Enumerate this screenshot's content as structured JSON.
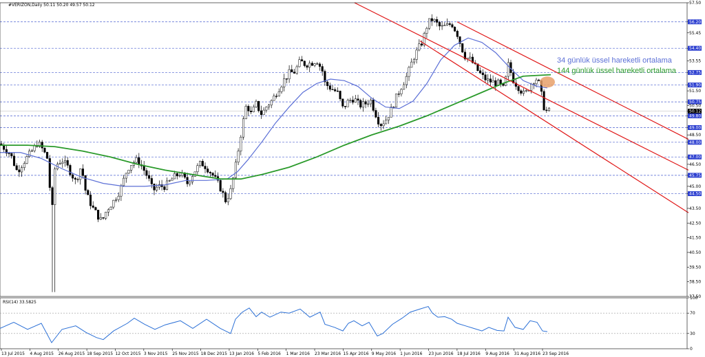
{
  "chart_data": {
    "type": "candlestick",
    "symbol_header": "#VERIZON,Daily  50.11 50.20 49.57 50.12",
    "price_axis": {
      "min": 37.5,
      "max": 57.5,
      "ticks": [
        "57.50",
        "56.20",
        "55.45",
        "54.40",
        "53.55",
        "52.75",
        "51.90",
        "51.50",
        "50.75",
        "50.50",
        "50.12",
        "49.80",
        "49.00",
        "48.50",
        "48.00",
        "47.00",
        "46.50",
        "45.75",
        "45.00",
        "44.50",
        "43.50",
        "42.50",
        "41.50",
        "40.50",
        "39.50",
        "38.50",
        "37.50"
      ],
      "highlighted": [
        "56.20",
        "54.40",
        "52.75",
        "51.90",
        "50.75",
        "50.12",
        "49.80",
        "49.00",
        "48.00",
        "47.00",
        "45.75",
        "44.50"
      ],
      "current_price": "50.12"
    },
    "date_labels": [
      "13 Jul 2015",
      "4 Aug 2015",
      "26 Aug 2015",
      "18 Sep 2015",
      "12 Oct 2015",
      "3 Nov 2015",
      "25 Nov 2015",
      "18 Dec 2015",
      "13 Jan 2016",
      "5 Feb 2016",
      "1 Mar 2016",
      "23 Mar 2016",
      "15 Apr 2016",
      "9 May 2016",
      "1 Jun 2016",
      "23 Jun 2016",
      "18 Jul 2016",
      "9 Aug 2016",
      "31 Aug 2016",
      "23 Sep 2016"
    ],
    "horizontal_levels": [
      56.2,
      54.4,
      52.75,
      51.9,
      50.75,
      49.8,
      49.0,
      48.0,
      47.0,
      45.75,
      44.5
    ],
    "price_path": [
      [
        0,
        47.9
      ],
      [
        15,
        47.2
      ],
      [
        25,
        46.0
      ],
      [
        35,
        46.7
      ],
      [
        45,
        47.3
      ],
      [
        55,
        48.0
      ],
      [
        62,
        47.5
      ],
      [
        70,
        46.8
      ],
      [
        75,
        42.8
      ],
      [
        80,
        46.4
      ],
      [
        90,
        46.8
      ],
      [
        100,
        46.2
      ],
      [
        110,
        45.3
      ],
      [
        118,
        46.4
      ],
      [
        125,
        44.5
      ],
      [
        135,
        43.5
      ],
      [
        142,
        43.0
      ],
      [
        148,
        42.6
      ],
      [
        155,
        43.4
      ],
      [
        165,
        44.0
      ],
      [
        175,
        44.8
      ],
      [
        185,
        46.2
      ],
      [
        192,
        46.6
      ],
      [
        200,
        46.8
      ],
      [
        208,
        46.2
      ],
      [
        215,
        45.6
      ],
      [
        222,
        44.7
      ],
      [
        230,
        45.0
      ],
      [
        240,
        45.0
      ],
      [
        252,
        45.6
      ],
      [
        262,
        45.9
      ],
      [
        272,
        45.2
      ],
      [
        282,
        46.0
      ],
      [
        292,
        46.6
      ],
      [
        300,
        46.3
      ],
      [
        310,
        45.7
      ],
      [
        320,
        44.9
      ],
      [
        328,
        44.0
      ],
      [
        335,
        44.7
      ],
      [
        342,
        46.3
      ],
      [
        350,
        48.6
      ],
      [
        358,
        50.6
      ],
      [
        365,
        49.9
      ],
      [
        372,
        50.6
      ],
      [
        380,
        49.9
      ],
      [
        388,
        50.5
      ],
      [
        396,
        50.9
      ],
      [
        404,
        51.6
      ],
      [
        412,
        52.2
      ],
      [
        420,
        52.7
      ],
      [
        428,
        52.8
      ],
      [
        436,
        53.5
      ],
      [
        444,
        53.3
      ],
      [
        452,
        53.4
      ],
      [
        460,
        53.6
      ],
      [
        468,
        52.9
      ],
      [
        472,
        52.0
      ],
      [
        480,
        51.7
      ],
      [
        490,
        51.4
      ],
      [
        498,
        50.3
      ],
      [
        506,
        50.8
      ],
      [
        514,
        51.0
      ],
      [
        522,
        50.5
      ],
      [
        530,
        50.6
      ],
      [
        538,
        50.9
      ],
      [
        546,
        49.9
      ],
      [
        552,
        49.2
      ],
      [
        560,
        49.5
      ],
      [
        568,
        50.2
      ],
      [
        576,
        51.1
      ],
      [
        584,
        51.9
      ],
      [
        592,
        52.6
      ],
      [
        600,
        53.7
      ],
      [
        608,
        54.4
      ],
      [
        614,
        54.9
      ],
      [
        620,
        55.9
      ],
      [
        626,
        56.4
      ],
      [
        632,
        56.2
      ],
      [
        640,
        55.8
      ],
      [
        648,
        55.9
      ],
      [
        656,
        56.1
      ],
      [
        664,
        55.4
      ],
      [
        670,
        54.5
      ],
      [
        676,
        53.8
      ],
      [
        684,
        53.6
      ],
      [
        692,
        53.0
      ],
      [
        700,
        52.5
      ],
      [
        708,
        52.2
      ],
      [
        716,
        52.1
      ],
      [
        724,
        52.0
      ],
      [
        732,
        51.6
      ],
      [
        738,
        53.3
      ],
      [
        746,
        52.2
      ],
      [
        754,
        51.7
      ],
      [
        762,
        51.2
      ],
      [
        770,
        51.9
      ],
      [
        778,
        52.4
      ],
      [
        784,
        51.9
      ],
      [
        789,
        50.5
      ],
      [
        794,
        50.1
      ],
      [
        798,
        50.12
      ]
    ],
    "series": [
      {
        "name": "34 günlük üssel hareketli ortalama",
        "color": "#5b6fd6",
        "values": [
          [
            0,
            47.3
          ],
          [
            30,
            47.3
          ],
          [
            60,
            46.9
          ],
          [
            90,
            46.2
          ],
          [
            120,
            45.6
          ],
          [
            150,
            45.2
          ],
          [
            180,
            45.0
          ],
          [
            210,
            45.0
          ],
          [
            240,
            45.1
          ],
          [
            270,
            45.4
          ],
          [
            300,
            45.4
          ],
          [
            330,
            45.5
          ],
          [
            345,
            46.0
          ],
          [
            360,
            46.8
          ],
          [
            380,
            48.0
          ],
          [
            400,
            49.3
          ],
          [
            420,
            50.4
          ],
          [
            440,
            51.4
          ],
          [
            460,
            52.0
          ],
          [
            480,
            52.3
          ],
          [
            500,
            52.2
          ],
          [
            520,
            51.8
          ],
          [
            540,
            51.0
          ],
          [
            560,
            50.4
          ],
          [
            580,
            50.3
          ],
          [
            600,
            50.8
          ],
          [
            620,
            52.0
          ],
          [
            640,
            53.6
          ],
          [
            660,
            54.6
          ],
          [
            680,
            55.1
          ],
          [
            700,
            54.8
          ],
          [
            720,
            54.1
          ],
          [
            740,
            53.1
          ],
          [
            760,
            52.2
          ],
          [
            780,
            51.8
          ],
          [
            795,
            51.7
          ]
        ]
      },
      {
        "name": "144 günlük üssel hareketli ortalama",
        "color": "#2a9a2a",
        "values": [
          [
            0,
            47.8
          ],
          [
            40,
            47.8
          ],
          [
            80,
            47.7
          ],
          [
            120,
            47.4
          ],
          [
            160,
            47.0
          ],
          [
            200,
            46.5
          ],
          [
            240,
            46.1
          ],
          [
            280,
            45.8
          ],
          [
            320,
            45.5
          ],
          [
            350,
            45.5
          ],
          [
            380,
            45.8
          ],
          [
            420,
            46.3
          ],
          [
            460,
            47.0
          ],
          [
            500,
            47.8
          ],
          [
            540,
            48.5
          ],
          [
            580,
            49.1
          ],
          [
            620,
            49.8
          ],
          [
            660,
            50.6
          ],
          [
            700,
            51.4
          ],
          [
            730,
            52.0
          ],
          [
            760,
            52.5
          ],
          [
            800,
            52.6
          ]
        ]
      }
    ],
    "channel": {
      "upper": [
        [
          515,
          57.5
        ],
        [
          1000,
          46.1
        ]
      ],
      "middle": [
        [
          664,
          56.2
        ],
        [
          1000,
          48.2
        ]
      ],
      "lower": [
        [
          610,
          54.9
        ],
        [
          1000,
          43.2
        ]
      ]
    },
    "highlight_point": [
      795,
      52.1
    ],
    "annotations": [
      {
        "text": "34 günlük üssel hareketli ortalama",
        "color": "#5b6fd6"
      },
      {
        "text": "144 günlük üssel hareketli ortalama",
        "color": "#2a9a2a"
      }
    ],
    "rsi": {
      "label": "RSI(14) 33.5825",
      "axis_ticks": [
        "100",
        "70",
        "30",
        "0"
      ],
      "levels": [
        70,
        30
      ],
      "values": [
        [
          0,
          40
        ],
        [
          20,
          52
        ],
        [
          40,
          38
        ],
        [
          60,
          50
        ],
        [
          75,
          12
        ],
        [
          90,
          38
        ],
        [
          110,
          45
        ],
        [
          125,
          32
        ],
        [
          140,
          22
        ],
        [
          150,
          18
        ],
        [
          165,
          35
        ],
        [
          185,
          50
        ],
        [
          195,
          60
        ],
        [
          210,
          48
        ],
        [
          225,
          38
        ],
        [
          240,
          47
        ],
        [
          262,
          55
        ],
        [
          280,
          40
        ],
        [
          300,
          58
        ],
        [
          320,
          40
        ],
        [
          335,
          30
        ],
        [
          342,
          58
        ],
        [
          352,
          72
        ],
        [
          362,
          80
        ],
        [
          372,
          63
        ],
        [
          380,
          72
        ],
        [
          392,
          62
        ],
        [
          408,
          72
        ],
        [
          420,
          70
        ],
        [
          436,
          78
        ],
        [
          450,
          62
        ],
        [
          465,
          72
        ],
        [
          472,
          48
        ],
        [
          486,
          42
        ],
        [
          498,
          35
        ],
        [
          506,
          50
        ],
        [
          514,
          55
        ],
        [
          526,
          45
        ],
        [
          536,
          52
        ],
        [
          548,
          25
        ],
        [
          556,
          30
        ],
        [
          570,
          48
        ],
        [
          584,
          60
        ],
        [
          596,
          72
        ],
        [
          610,
          78
        ],
        [
          622,
          83
        ],
        [
          628,
          70
        ],
        [
          636,
          62
        ],
        [
          646,
          63
        ],
        [
          656,
          58
        ],
        [
          664,
          50
        ],
        [
          676,
          45
        ],
        [
          688,
          40
        ],
        [
          700,
          35
        ],
        [
          710,
          42
        ],
        [
          722,
          36
        ],
        [
          732,
          35
        ],
        [
          738,
          62
        ],
        [
          748,
          42
        ],
        [
          760,
          38
        ],
        [
          770,
          55
        ],
        [
          780,
          52
        ],
        [
          788,
          35
        ],
        [
          795,
          33.6
        ]
      ]
    }
  }
}
